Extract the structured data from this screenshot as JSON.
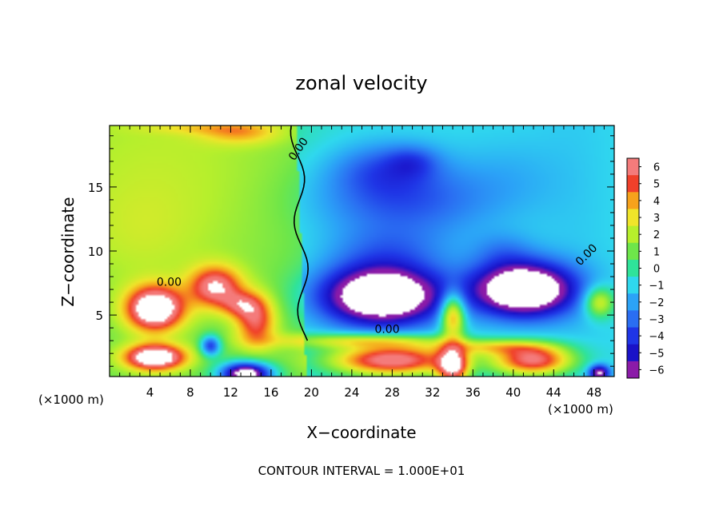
{
  "chart_data": {
    "type": "heatmap",
    "title": "zonal velocity",
    "xlabel": "X−coordinate",
    "ylabel": "Z−coordinate",
    "x_unit": "(×1000 m)",
    "y_unit": "(×1000 m)",
    "xlim": [
      0,
      50
    ],
    "ylim": [
      0.2,
      19.8
    ],
    "x_ticks": [
      4,
      8,
      12,
      16,
      20,
      24,
      28,
      32,
      36,
      40,
      44,
      48
    ],
    "y_ticks": [
      5,
      10,
      15
    ],
    "colorbar": {
      "ticks": [
        6,
        5,
        4,
        3,
        2,
        1,
        0,
        -1,
        -2,
        -3,
        -4,
        -5,
        -6
      ],
      "tick_labels": [
        "6",
        "5",
        "4",
        "3",
        "2",
        "1",
        "0",
        "−1",
        "−2",
        "−3",
        "−4",
        "−5",
        "−6"
      ],
      "range": [
        -6.5,
        6.5
      ]
    },
    "contour_labels": [
      {
        "text": "0.00",
        "x": 19.0,
        "y": 17.8,
        "rotate": -55
      },
      {
        "text": "0.00",
        "x": 5.9,
        "y": 7.3,
        "rotate": 0
      },
      {
        "text": "0.00",
        "x": 27.5,
        "y": 3.6,
        "rotate": 0
      },
      {
        "text": "0.00",
        "x": 47.5,
        "y": 9.5,
        "rotate": -45
      }
    ],
    "footer": "CONTOUR INTERVAL = 1.000E+01",
    "field_features": [
      {
        "x": 5,
        "y": 16,
        "sx": 14,
        "sy": 9,
        "v": 1.2
      },
      {
        "x": 3,
        "y": 11,
        "sx": 6,
        "sy": 4,
        "v": 0.6
      },
      {
        "x": 9,
        "y": 19.6,
        "sx": 6,
        "sy": 0.5,
        "v": 1.2
      },
      {
        "x": 13,
        "y": 19.2,
        "sx": 4,
        "sy": 0.9,
        "v": 2.2
      },
      {
        "x": 29,
        "y": 14,
        "sx": 9,
        "sy": 3,
        "v": -2.6
      },
      {
        "x": 27,
        "y": 16.5,
        "sx": 5,
        "sy": 2,
        "v": -1.8
      },
      {
        "x": 30,
        "y": 17,
        "sx": 2.5,
        "sy": 1.2,
        "v": -1.5
      },
      {
        "x": 40,
        "y": 16,
        "sx": 5,
        "sy": 3,
        "v": -0.6
      },
      {
        "x": 27.5,
        "y": 10,
        "sx": 6,
        "sy": 2,
        "v": -1.6
      },
      {
        "x": 39,
        "y": 10,
        "sx": 3,
        "sy": 1.5,
        "v": -1.2
      },
      {
        "x": 27,
        "y": 6.5,
        "sx": 6,
        "sy": 2.3,
        "v": -9
      },
      {
        "x": 41,
        "y": 7,
        "sx": 5,
        "sy": 2.1,
        "v": -9
      },
      {
        "x": 4.5,
        "y": 5.5,
        "sx": 2.8,
        "sy": 1.7,
        "v": 8
      },
      {
        "x": 4.5,
        "y": 1.7,
        "sx": 3,
        "sy": 1.0,
        "v": 8
      },
      {
        "x": 10.5,
        "y": 7.2,
        "sx": 2.6,
        "sy": 1.6,
        "v": 5.5
      },
      {
        "x": 14.5,
        "y": 4.5,
        "sx": 2,
        "sy": 2,
        "v": 4.5
      },
      {
        "x": 13,
        "y": 5.8,
        "sx": 2,
        "sy": 1,
        "v": 3
      },
      {
        "x": 10,
        "y": 2.6,
        "sx": 1,
        "sy": 0.8,
        "v": -5
      },
      {
        "x": 13.5,
        "y": 0.4,
        "sx": 2.5,
        "sy": 0.9,
        "v": -9
      },
      {
        "x": 28,
        "y": 1.5,
        "sx": 6,
        "sy": 1.2,
        "v": 7.5
      },
      {
        "x": 25,
        "y": 3.0,
        "sx": 8,
        "sy": 0.6,
        "v": 3.5
      },
      {
        "x": 34,
        "y": 5,
        "sx": 1.2,
        "sy": 1.8,
        "v": 6
      },
      {
        "x": 34,
        "y": 1.0,
        "sx": 1.5,
        "sy": 1.5,
        "v": 7
      },
      {
        "x": 42,
        "y": 1.5,
        "sx": 4,
        "sy": 1.2,
        "v": 7
      },
      {
        "x": 38,
        "y": 2.5,
        "sx": 5,
        "sy": 0.6,
        "v": 3
      },
      {
        "x": 48.5,
        "y": 6,
        "sx": 1.5,
        "sy": 1.2,
        "v": 4
      },
      {
        "x": 48.5,
        "y": 0.5,
        "sx": 1,
        "sy": 0.6,
        "v": -6
      }
    ]
  }
}
